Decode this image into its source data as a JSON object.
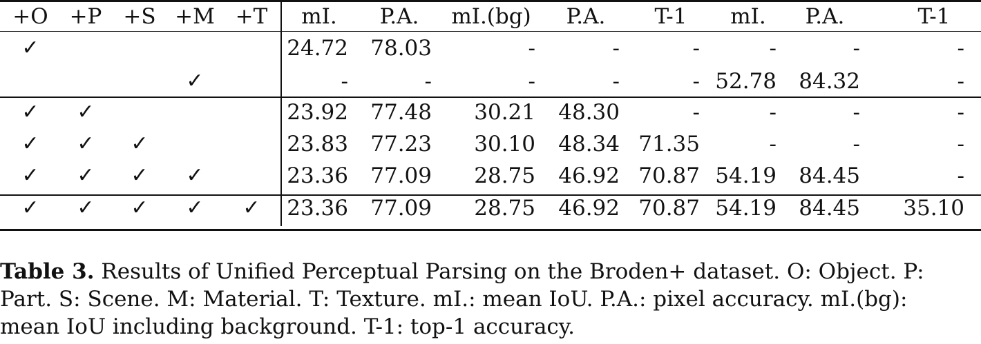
{
  "table": {
    "headers": [
      "+O",
      "+P",
      "+S",
      "+M",
      "+T",
      "mI.",
      "P.A.",
      "mI.(bg)",
      "P.A.",
      "T-1",
      "mI.",
      "P.A.",
      "T-1"
    ],
    "check_glyph": "✓",
    "rows": [
      {
        "checks": [
          true,
          false,
          false,
          false,
          false
        ],
        "values": [
          "24.72",
          "78.03",
          "-",
          "-",
          "-",
          "-",
          "-",
          "-"
        ]
      },
      {
        "checks": [
          false,
          false,
          false,
          true,
          false
        ],
        "values": [
          "-",
          "-",
          "-",
          "-",
          "-",
          "52.78",
          "84.32",
          "-"
        ]
      },
      {
        "checks": [
          true,
          true,
          false,
          false,
          false
        ],
        "values": [
          "23.92",
          "77.48",
          "30.21",
          "48.30",
          "-",
          "-",
          "-",
          "-"
        ]
      },
      {
        "checks": [
          true,
          true,
          true,
          false,
          false
        ],
        "values": [
          "23.83",
          "77.23",
          "30.10",
          "48.34",
          "71.35",
          "-",
          "-",
          "-"
        ]
      },
      {
        "checks": [
          true,
          true,
          true,
          true,
          false
        ],
        "values": [
          "23.36",
          "77.09",
          "28.75",
          "46.92",
          "70.87",
          "54.19",
          "84.45",
          "-"
        ]
      },
      {
        "checks": [
          true,
          true,
          true,
          true,
          true
        ],
        "values": [
          "23.36",
          "77.09",
          "28.75",
          "46.92",
          "70.87",
          "54.19",
          "84.45",
          "35.10"
        ]
      }
    ]
  },
  "caption": {
    "label": "Table 3.",
    "line1": " Results of Unified Perceptual Parsing on the Broden+ dataset. O: Object. P:",
    "line2": "Part. S: Scene. M: Material. T: Texture. mI.: mean IoU. P.A.: pixel accuracy. mI.(bg):",
    "line3": "mean IoU including background. T-1: top-1 accuracy."
  }
}
